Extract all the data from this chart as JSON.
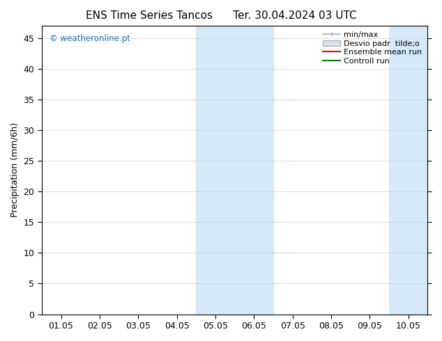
{
  "title": "ENS Time Series Tancos      Ter. 30.04.2024 03 UTC",
  "ylabel": "Precipitation (mm/6h)",
  "watermark": "© weatheronline.pt",
  "x_tick_labels": [
    "01.05",
    "02.05",
    "03.05",
    "04.05",
    "05.05",
    "06.05",
    "07.05",
    "08.05",
    "09.05",
    "10.05"
  ],
  "x_tick_positions": [
    0,
    1,
    2,
    3,
    4,
    5,
    6,
    7,
    8,
    9
  ],
  "ylim": [
    0,
    47
  ],
  "yticks": [
    0,
    5,
    10,
    15,
    20,
    25,
    30,
    35,
    40,
    45
  ],
  "xlim": [
    -0.5,
    9.5
  ],
  "shaded_blocks": [
    {
      "x_start": 3.5,
      "x_end": 5.5
    },
    {
      "x_start": 8.5,
      "x_end": 9.5
    }
  ],
  "shaded_color": "#d6e9f8",
  "bg_color": "#ffffff",
  "plot_bg_color": "#ffffff",
  "border_color": "#000000",
  "grid_color": "#cccccc",
  "watermark_color": "#1a6fc4",
  "title_fontsize": 11,
  "label_fontsize": 9,
  "tick_fontsize": 9,
  "legend_fontsize": 8,
  "min_max_color": "#aaaaaa",
  "desvio_color": "#d0e5f5",
  "ensemble_color": "#ff0000",
  "control_color": "#008000"
}
